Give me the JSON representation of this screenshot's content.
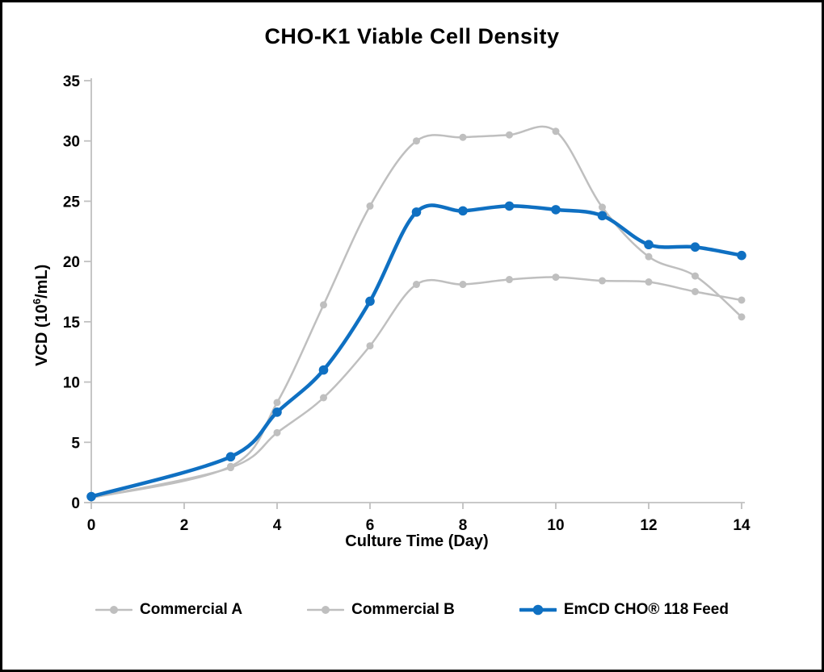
{
  "chart_data": {
    "type": "line",
    "title": "CHO-K1 Viable Cell Density",
    "xlabel": "Culture Time (Day)",
    "ylabel": "VCD (10^6/mL)",
    "ylabel_parts": {
      "prefix": "VCD (10",
      "sup": "6",
      "suffix": "/mL)"
    },
    "xlim": [
      0,
      14
    ],
    "ylim": [
      0,
      35
    ],
    "xticks": [
      0,
      2,
      4,
      6,
      8,
      10,
      12,
      14
    ],
    "yticks": [
      0,
      5,
      10,
      15,
      20,
      25,
      30,
      35
    ],
    "grid": false,
    "legend_position": "bottom",
    "axis_color": "#c0c0c0",
    "x": [
      0,
      3,
      4,
      5,
      6,
      7,
      8,
      9,
      10,
      11,
      12,
      13,
      14
    ],
    "series": [
      {
        "name": "Commercial A",
        "color": "#bfbfbf",
        "line_width": 2.5,
        "marker_radius": 4.5,
        "values": [
          0.4,
          3.0,
          8.3,
          16.4,
          24.6,
          30.0,
          30.3,
          30.5,
          30.8,
          24.5,
          20.4,
          18.8,
          15.4
        ]
      },
      {
        "name": "Commercial B",
        "color": "#bfbfbf",
        "line_width": 2.5,
        "marker_radius": 4.5,
        "values": [
          0.4,
          2.9,
          5.8,
          8.7,
          13.0,
          18.1,
          18.1,
          18.5,
          18.7,
          18.4,
          18.3,
          17.5,
          16.8
        ]
      },
      {
        "name": "EmCD CHO® 118 Feed",
        "color": "#0f70c2",
        "line_width": 4.5,
        "marker_radius": 5.8,
        "values": [
          0.5,
          3.8,
          7.5,
          11.0,
          16.7,
          24.1,
          24.2,
          24.6,
          24.3,
          23.8,
          21.4,
          21.2,
          20.5
        ]
      }
    ]
  }
}
